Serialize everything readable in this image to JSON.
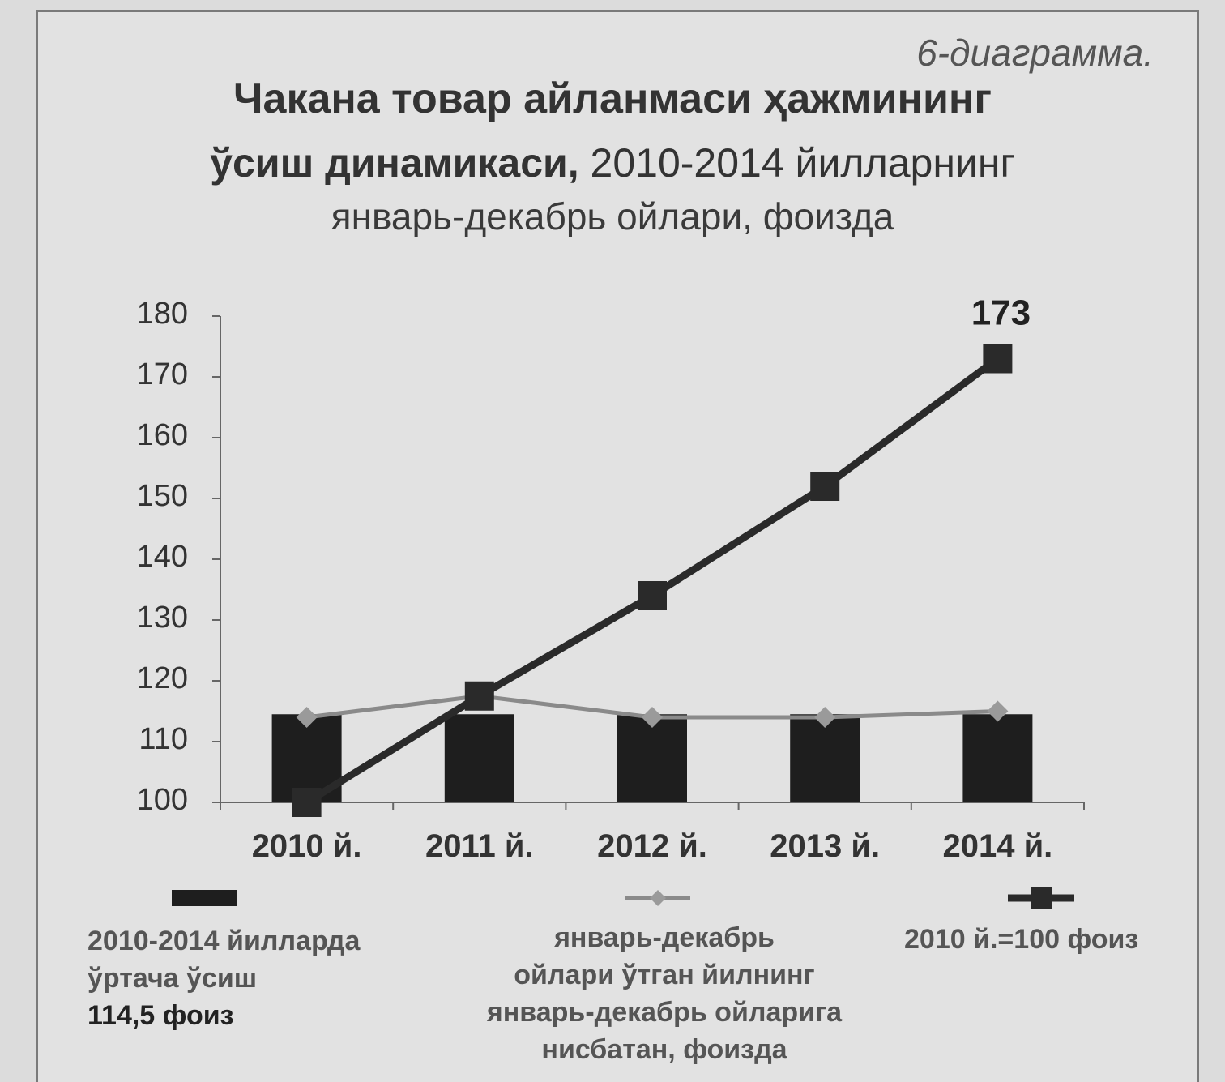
{
  "figure_label": "6-диаграмма.",
  "title_line1": "Чакана товар айланмаси ҳажмининг",
  "title_line2_bold": "ўсиш динамикаси,",
  "title_line2_rest": " 2010-2014 йилларнинг",
  "title_line3": "январь-декабрь ойлари, фоизда",
  "chart_data": {
    "type": "bar",
    "categories": [
      "2010 й.",
      "2011 й.",
      "2012 й.",
      "2013 й.",
      "2014 й."
    ],
    "ylim": [
      100,
      180
    ],
    "yticks": [
      100,
      110,
      120,
      130,
      140,
      150,
      160,
      170,
      180
    ],
    "series": [
      {
        "name": "2010-2014 йилларда ўртача ўсиш 114,5 фоиз",
        "type": "bar",
        "values": [
          114.5,
          114.5,
          114.5,
          114.5,
          114.5
        ],
        "color": "#1e1e1e"
      },
      {
        "name": "январь-декабрь ойлари ўтган йилнинг январь-декабрь ойларига нисбатан, фоизда",
        "type": "line",
        "values": [
          114,
          117.5,
          114,
          114,
          115
        ],
        "color": "#8a8a8a"
      },
      {
        "name": "2010 й.=100 фоиз",
        "type": "line",
        "values": [
          100,
          117.5,
          134,
          152,
          173
        ],
        "color": "#2a2a2a"
      }
    ],
    "data_labels": [
      {
        "series": 2,
        "index": 4,
        "text": "173"
      }
    ]
  },
  "legend": {
    "item1_line1": "2010-2014 йилларда",
    "item1_line2": "ўртача ўсиш",
    "item1_line3": "114,5 фоиз",
    "item2_line1": "январь-декабрь",
    "item2_line2": "ойлари ўтган йилнинг",
    "item2_line3": "январь-декабрь ойларига",
    "item2_line4": "нисбатан,  фоизда",
    "item3_line1": "2010 й.=100 фоиз"
  }
}
